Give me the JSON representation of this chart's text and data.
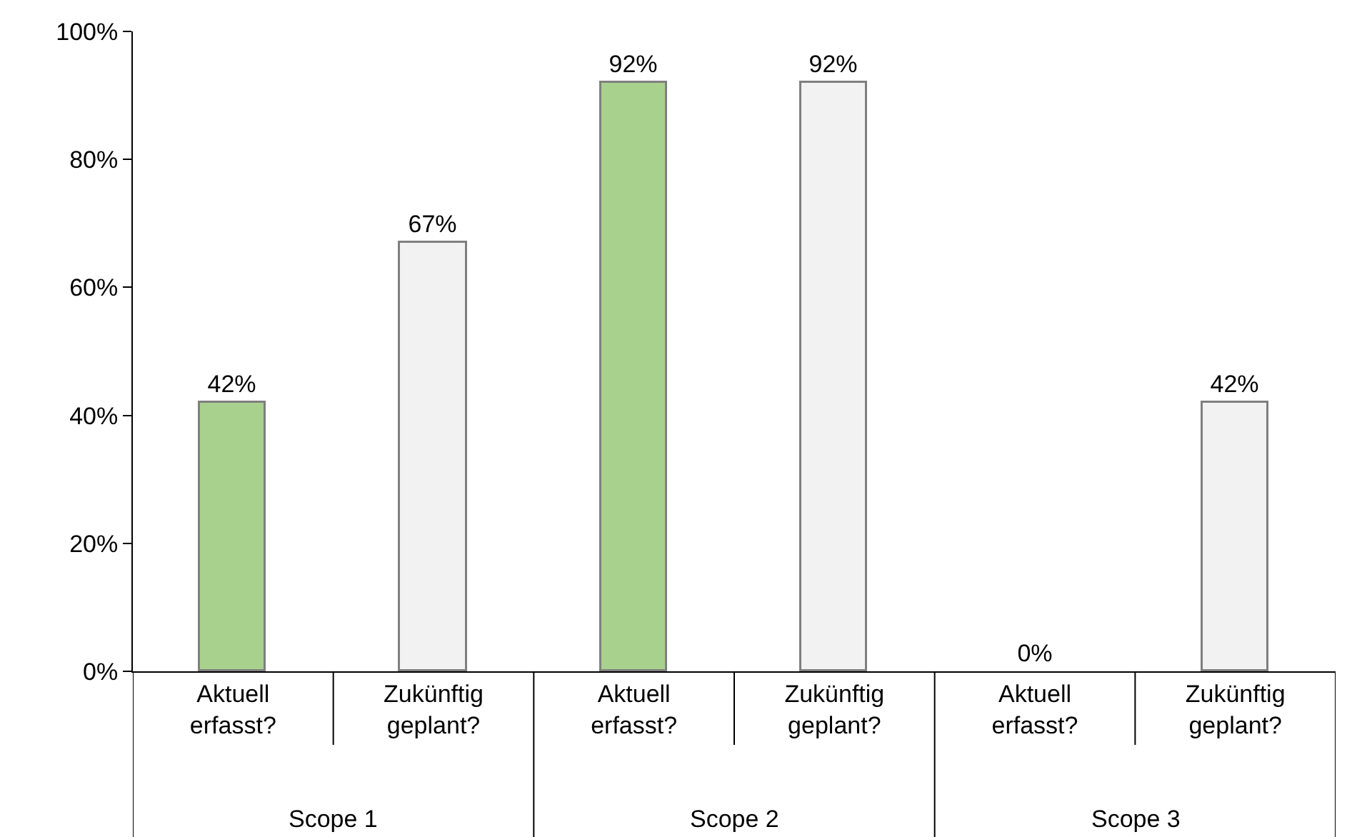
{
  "chart_data": {
    "type": "bar",
    "categories": [
      "Aktuell erfasst?",
      "Zukünftig geplant?",
      "Aktuell erfasst?",
      "Zukünftig geplant?",
      "Aktuell erfasst?",
      "Zukünftig geplant?"
    ],
    "values": [
      42,
      67,
      92,
      92,
      0,
      42
    ],
    "colors": [
      "#a9d18e",
      "#f2f2f2",
      "#a9d18e",
      "#f2f2f2",
      "#a9d18e",
      "#f2f2f2"
    ],
    "value_labels": [
      "42%",
      "67%",
      "92%",
      "92%",
      "0%",
      "42%"
    ],
    "annotations": [
      "Scope 1",
      "Scope 2",
      "Scope 3"
    ],
    "ylim": [
      0,
      100
    ],
    "yticks": [
      {
        "value": 0,
        "label": "0%"
      },
      {
        "value": 20,
        "label": "20%"
      },
      {
        "value": 40,
        "label": "40%"
      },
      {
        "value": 60,
        "label": "60%"
      },
      {
        "value": 80,
        "label": "80%"
      },
      {
        "value": 100,
        "label": "100%"
      }
    ],
    "grid": false,
    "legend": false
  }
}
